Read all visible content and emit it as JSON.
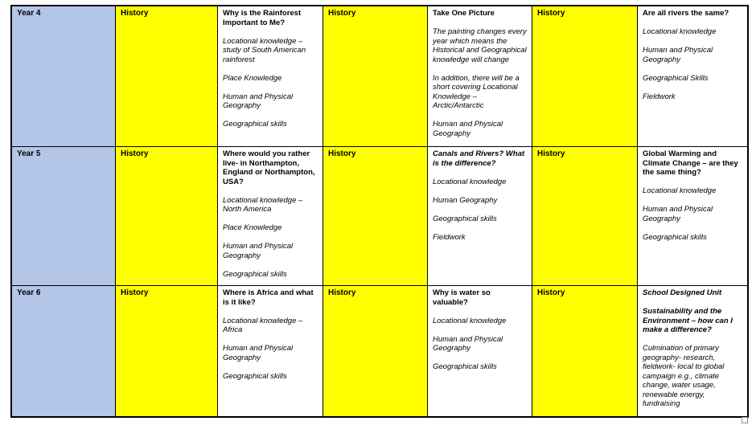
{
  "colors": {
    "year_cell_fill": "#b4c6e7",
    "history_cell_fill": "#ffff00",
    "topic_cell_fill": "#ffffff",
    "border": "#000000"
  },
  "table": {
    "rows": [
      {
        "year_label": "Year 4",
        "units": [
          {
            "subject_label": "History",
            "paragraphs": [
              {
                "style": "bold",
                "text": "Why is the Rainforest Important to Me?"
              },
              {
                "style": "italic",
                "text": "Locational knowledge – study of South American rainforest"
              },
              {
                "style": "italic",
                "text": "Place Knowledge"
              },
              {
                "style": "italic",
                "text": "Human and Physical Geography"
              },
              {
                "style": "italic",
                "text": "Geographical skills"
              }
            ]
          },
          {
            "subject_label": "History",
            "paragraphs": [
              {
                "style": "bold",
                "text": "Take One Picture"
              },
              {
                "style": "italic",
                "text": "The painting changes every year which means the Historical and Geographical knowledge will change"
              },
              {
                "style": "italic",
                "text": "In addition, there will be a short covering Locational Knowledge – Arctic/Antarctic"
              },
              {
                "style": "italic",
                "text": "Human and Physical Geography"
              },
              {
                "style": "italic",
                "text": "Geographical skills"
              }
            ]
          },
          {
            "subject_label": "History",
            "paragraphs": [
              {
                "style": "bold",
                "text": "Are all rivers the same?"
              },
              {
                "style": "italic",
                "text": "Locational knowledge"
              },
              {
                "style": "italic",
                "text": "Human and Physical Geography"
              },
              {
                "style": "italic",
                "text": "Geographical Skills"
              },
              {
                "style": "italic",
                "text": "Fieldwork"
              }
            ]
          }
        ]
      },
      {
        "year_label": "Year 5",
        "units": [
          {
            "subject_label": "History",
            "paragraphs": [
              {
                "style": "bold",
                "text": "Where would you rather live- in Northampton, England or Northampton, USA?"
              },
              {
                "style": "italic",
                "text": "Locational knowledge – North America"
              },
              {
                "style": "italic",
                "text": "Place Knowledge"
              },
              {
                "style": "italic",
                "text": "Human and Physical Geography"
              },
              {
                "style": "italic",
                "text": "Geographical skills"
              }
            ]
          },
          {
            "subject_label": "History",
            "paragraphs": [
              {
                "style": "bold-italic",
                "text": "Canals and Rivers? What is the difference?"
              },
              {
                "style": "italic",
                "text": "Locational knowledge"
              },
              {
                "style": "italic",
                "text": "Human Geography"
              },
              {
                "style": "italic",
                "text": "Geographical skills"
              },
              {
                "style": "italic",
                "text": "Fieldwork"
              }
            ]
          },
          {
            "subject_label": "History",
            "paragraphs": [
              {
                "style": "bold",
                "text": "Global Warming and Climate Change – are they the same thing?"
              },
              {
                "style": "italic",
                "text": "Locational knowledge"
              },
              {
                "style": "italic",
                "text": "Human and Physical Geography"
              },
              {
                "style": "italic",
                "text": "Geographical skills"
              }
            ]
          }
        ]
      },
      {
        "year_label": "Year 6",
        "units": [
          {
            "subject_label": "History",
            "paragraphs": [
              {
                "style": "bold",
                "text": "Where is Africa and what is it like?"
              },
              {
                "style": "italic",
                "text": "Locational knowledge – Africa"
              },
              {
                "style": "italic",
                "text": "Human and Physical Geography"
              },
              {
                "style": "italic",
                "text": "Geographical skills"
              }
            ]
          },
          {
            "subject_label": "History",
            "paragraphs": [
              {
                "style": "bold",
                "text": "Why is water so valuable?"
              },
              {
                "style": "italic",
                "text": "Locational knowledge"
              },
              {
                "style": "italic",
                "text": "Human and Physical Geography"
              },
              {
                "style": "italic",
                "text": "Geographical skills"
              }
            ]
          },
          {
            "subject_label": "History",
            "paragraphs": [
              {
                "style": "bold-italic",
                "text": "School Designed Unit"
              },
              {
                "style": "bold-italic",
                "text": "Sustainability and the Environment – how can I make a difference?"
              },
              {
                "style": "italic",
                "text": "Culmination of primary geography- research, fieldwork- local to global campaign e.g., climate change, water usage, renewable energy, fundraising"
              }
            ]
          }
        ]
      }
    ]
  }
}
